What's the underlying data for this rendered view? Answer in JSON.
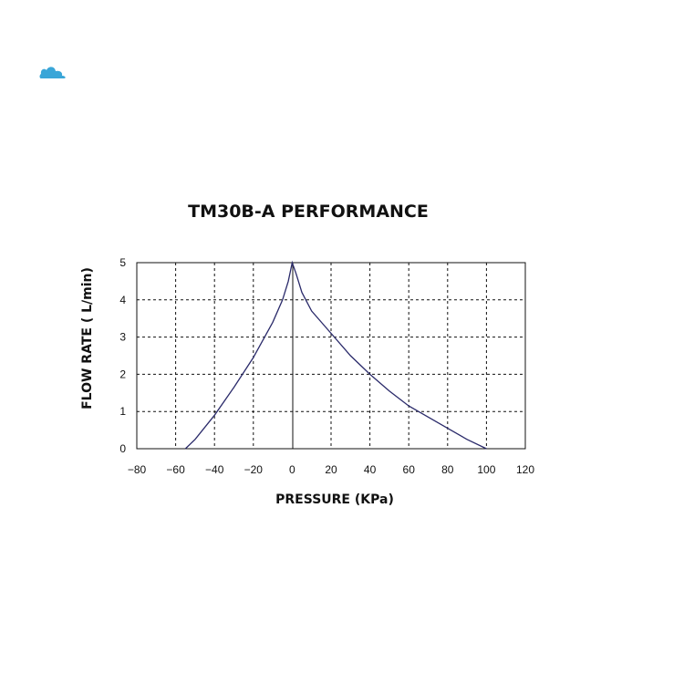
{
  "logo": {
    "icon": "cloud-logo-icon",
    "color": "#3aa6d8"
  },
  "chart_data": {
    "type": "line",
    "title": "TM30B-A PERFORMANCE",
    "xlabel": "PRESSURE (KPa)",
    "ylabel": "FLOW RATE ( L/min)",
    "xlim": [
      -80,
      120
    ],
    "ylim": [
      0,
      5
    ],
    "xticks": [
      -80,
      -60,
      -40,
      -20,
      0,
      20,
      40,
      60,
      80,
      100,
      120
    ],
    "yticks": [
      0,
      1,
      2,
      3,
      4,
      5
    ],
    "grid": true,
    "line_color": "#2a2a6a",
    "series": [
      {
        "x": [
          -55,
          -50,
          -40,
          -30,
          -20,
          -10,
          -5,
          -2,
          0,
          2,
          5,
          10,
          20,
          30,
          40,
          50,
          60,
          70,
          80,
          90,
          100
        ],
        "y": [
          0,
          0.25,
          0.9,
          1.65,
          2.45,
          3.4,
          4.0,
          4.5,
          5.0,
          4.7,
          4.2,
          3.7,
          3.1,
          2.5,
          2.0,
          1.55,
          1.15,
          0.85,
          0.55,
          0.25,
          0
        ]
      }
    ]
  }
}
